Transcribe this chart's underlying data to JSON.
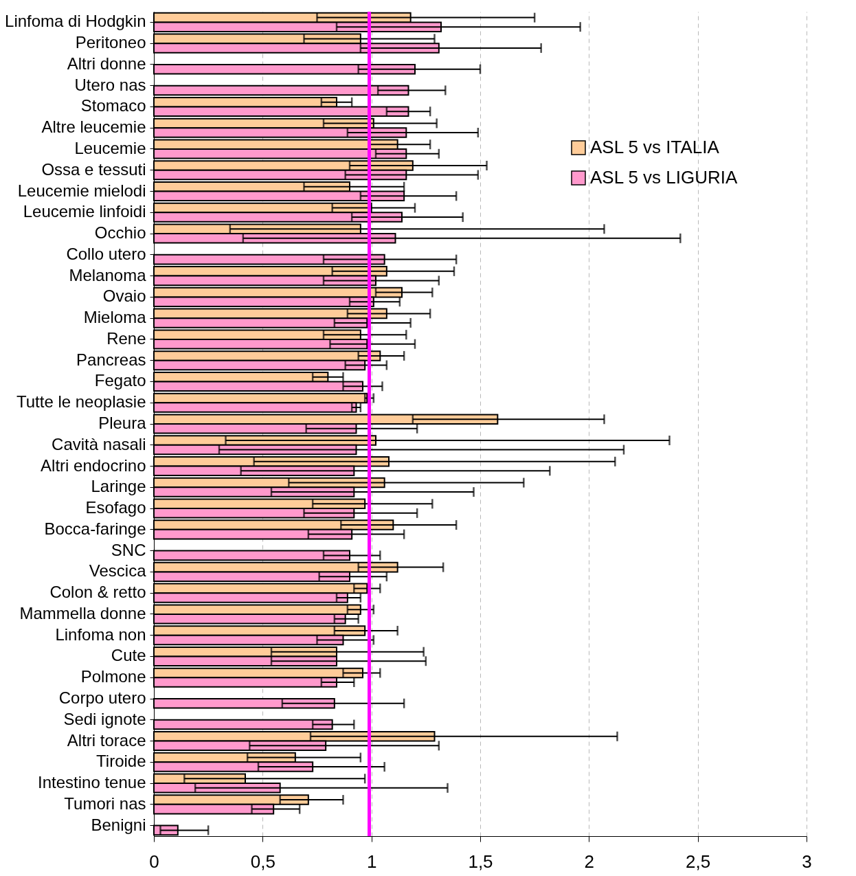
{
  "chart_data": {
    "type": "bar",
    "orientation": "horizontal",
    "categories": [
      "Linfoma di Hodgkin",
      "Peritoneo",
      "Altri donne",
      "Utero nas",
      "Stomaco",
      "Altre leucemie",
      "Leucemie",
      "Ossa e tessuti",
      "Leucemie mielodi",
      "Leucemie linfoidi",
      "Occhio",
      "Collo utero",
      "Melanoma",
      "Ovaio",
      "Mieloma",
      "Rene",
      "Pancreas",
      "Fegato",
      "Tutte le neoplasie",
      "Pleura",
      "Cavità nasali",
      "Altri endocrino",
      "Laringe",
      "Esofago",
      "Bocca-faringe",
      "SNC",
      "Vescica",
      "Colon & retto",
      "Mammella donne",
      "Linfoma non",
      "Cute",
      "Polmone",
      "Corpo utero",
      "Sedi ignote",
      "Altri torace",
      "Tiroide",
      "Intestino tenue",
      "Tumori nas",
      "Benigni"
    ],
    "series": [
      {
        "name": "ASL 5 vs ITALIA",
        "color": "#ffcc99",
        "values": [
          1.18,
          0.95,
          null,
          null,
          0.84,
          1.01,
          1.12,
          1.19,
          0.9,
          1.0,
          0.95,
          null,
          1.07,
          1.14,
          1.07,
          0.95,
          1.04,
          0.8,
          0.98,
          1.58,
          1.02,
          1.08,
          1.06,
          0.97,
          1.1,
          null,
          1.12,
          0.98,
          0.95,
          0.97,
          0.84,
          0.96,
          null,
          null,
          1.29,
          0.65,
          0.42,
          0.71,
          null
        ],
        "errors": [
          [
            0.75,
            1.75
          ],
          [
            0.69,
            1.29
          ],
          null,
          null,
          [
            0.77,
            0.91
          ],
          [
            0.78,
            1.3
          ],
          [
            0.99,
            1.27
          ],
          [
            0.9,
            1.53
          ],
          [
            0.69,
            1.15
          ],
          [
            0.82,
            1.2
          ],
          [
            0.35,
            2.07
          ],
          null,
          [
            0.82,
            1.38
          ],
          [
            1.02,
            1.28
          ],
          [
            0.89,
            1.27
          ],
          [
            0.78,
            1.16
          ],
          [
            0.94,
            1.15
          ],
          [
            0.73,
            0.87
          ],
          [
            0.97,
            1.01
          ],
          [
            1.19,
            2.07
          ],
          [
            0.33,
            2.37
          ],
          [
            0.46,
            2.12
          ],
          [
            0.62,
            1.7
          ],
          [
            0.73,
            1.28
          ],
          [
            0.86,
            1.39
          ],
          null,
          [
            0.94,
            1.33
          ],
          [
            0.92,
            1.04
          ],
          [
            0.89,
            1.01
          ],
          [
            0.83,
            1.12
          ],
          [
            0.54,
            1.24
          ],
          [
            0.87,
            1.04
          ],
          null,
          null,
          [
            0.72,
            2.13
          ],
          [
            0.43,
            0.95
          ],
          [
            0.14,
            0.97
          ],
          [
            0.58,
            0.87
          ],
          null
        ]
      },
      {
        "name": "ASL 5 vs LIGURIA",
        "color": "#ff99cc",
        "values": [
          1.32,
          1.31,
          1.2,
          1.17,
          1.17,
          1.16,
          1.16,
          1.16,
          1.15,
          1.14,
          1.11,
          1.06,
          1.02,
          1.01,
          0.98,
          0.98,
          0.97,
          0.96,
          0.93,
          0.93,
          0.93,
          0.92,
          0.92,
          0.92,
          0.91,
          0.9,
          0.9,
          0.89,
          0.88,
          0.87,
          0.84,
          0.84,
          0.83,
          0.82,
          0.79,
          0.73,
          0.58,
          0.55,
          0.11
        ],
        "errors": [
          [
            0.84,
            1.96
          ],
          [
            0.95,
            1.78
          ],
          [
            0.94,
            1.5
          ],
          [
            1.03,
            1.34
          ],
          [
            1.07,
            1.27
          ],
          [
            0.89,
            1.49
          ],
          [
            1.02,
            1.31
          ],
          [
            0.88,
            1.49
          ],
          [
            0.95,
            1.39
          ],
          [
            0.91,
            1.42
          ],
          [
            0.41,
            2.42
          ],
          [
            0.78,
            1.39
          ],
          [
            0.78,
            1.31
          ],
          [
            0.9,
            1.13
          ],
          [
            0.83,
            1.18
          ],
          [
            0.81,
            1.2
          ],
          [
            0.88,
            1.07
          ],
          [
            0.87,
            1.05
          ],
          [
            0.91,
            0.95
          ],
          [
            0.7,
            1.21
          ],
          [
            0.3,
            2.16
          ],
          [
            0.4,
            1.82
          ],
          [
            0.54,
            1.47
          ],
          [
            0.69,
            1.21
          ],
          [
            0.71,
            1.15
          ],
          [
            0.78,
            1.04
          ],
          [
            0.76,
            1.07
          ],
          [
            0.84,
            0.95
          ],
          [
            0.83,
            0.94
          ],
          [
            0.75,
            1.01
          ],
          [
            0.54,
            1.25
          ],
          [
            0.77,
            0.92
          ],
          [
            0.59,
            1.15
          ],
          [
            0.73,
            0.92
          ],
          [
            0.44,
            1.31
          ],
          [
            0.48,
            1.06
          ],
          [
            0.19,
            1.35
          ],
          [
            0.45,
            0.67
          ],
          [
            0.03,
            0.25
          ]
        ]
      }
    ],
    "xlim": [
      0,
      3
    ],
    "xticks": [
      0,
      {
        "value": 0.5,
        "label": "0,5"
      },
      1,
      {
        "value": 1.5,
        "label": "1,5"
      },
      2,
      {
        "value": 2.5,
        "label": "2,5"
      },
      3
    ],
    "ref_lines": [
      {
        "axis": "x",
        "value": 0.99,
        "color": "#ff00ff"
      }
    ],
    "grid": "x",
    "legend": "right"
  }
}
